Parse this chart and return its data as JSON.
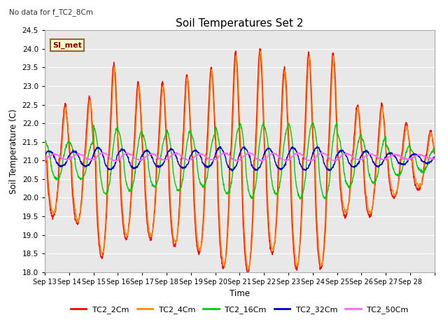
{
  "title": "Soil Temperatures Set 2",
  "subtitle": "No data for f_TC2_8Cm",
  "xlabel": "Time",
  "ylabel": "Soil Temperature (C)",
  "ylim": [
    18.0,
    24.5
  ],
  "yticks": [
    18.0,
    18.5,
    19.0,
    19.5,
    20.0,
    20.5,
    21.0,
    21.5,
    22.0,
    22.5,
    23.0,
    23.5,
    24.0,
    24.5
  ],
  "xtick_labels": [
    "Sep 13",
    "Sep 14",
    "Sep 15",
    "Sep 16",
    "Sep 17",
    "Sep 18",
    "Sep 19",
    "Sep 20",
    "Sep 21",
    "Sep 22",
    "Sep 23",
    "Sep 24",
    "Sep 25",
    "Sep 26",
    "Sep 27",
    "Sep 28"
  ],
  "legend_labels": [
    "TC2_2Cm",
    "TC2_4Cm",
    "TC2_16Cm",
    "TC2_32Cm",
    "TC2_50Cm"
  ],
  "line_colors": [
    "#ff0000",
    "#ff8c00",
    "#00cc00",
    "#0000cc",
    "#ff66ff"
  ],
  "line_widths": [
    1.0,
    1.0,
    1.0,
    1.0,
    1.0
  ],
  "annotation_text": "SI_met",
  "fig_width": 6.4,
  "fig_height": 4.8,
  "dpi": 100
}
